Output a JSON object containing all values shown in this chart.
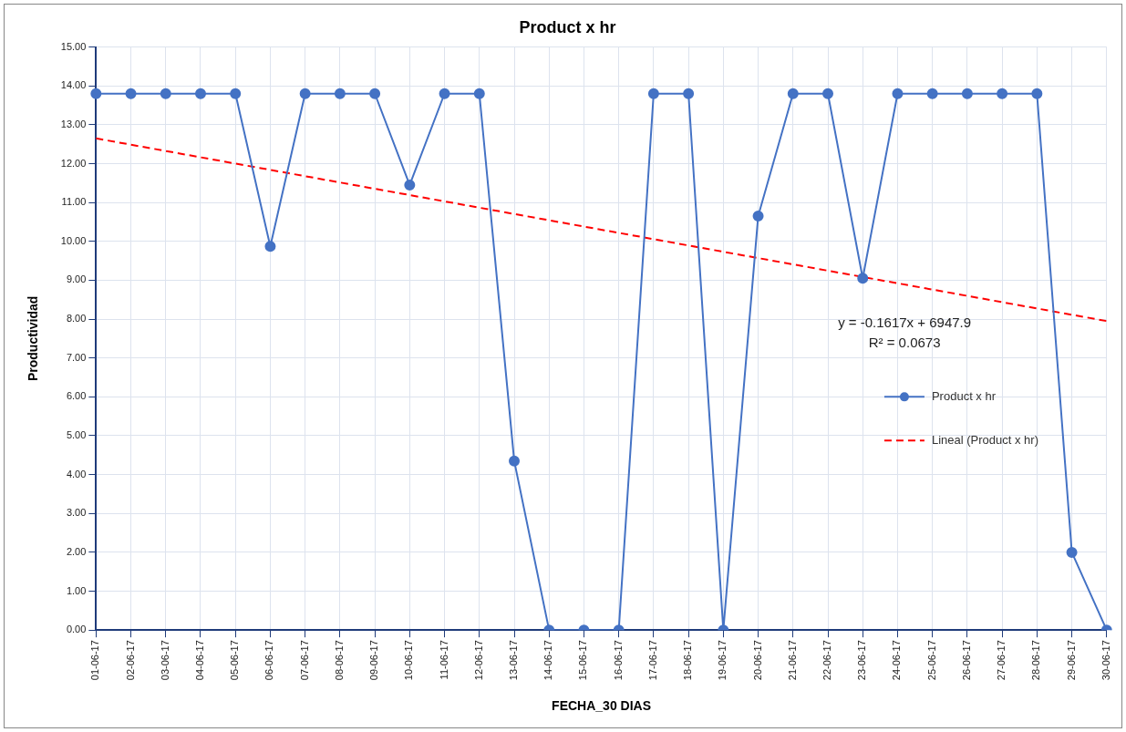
{
  "chart_data": {
    "type": "line",
    "title": "Product x hr",
    "xlabel": "FECHA_30 DIAS",
    "ylabel": "Productividad",
    "categories": [
      "01-06-17",
      "02-06-17",
      "03-06-17",
      "04-06-17",
      "05-06-17",
      "06-06-17",
      "07-06-17",
      "08-06-17",
      "09-06-17",
      "10-06-17",
      "11-06-17",
      "12-06-17",
      "13-06-17",
      "14-06-17",
      "15-06-17",
      "16-06-17",
      "17-06-17",
      "18-06-17",
      "19-06-17",
      "20-06-17",
      "21-06-17",
      "22-06-17",
      "23-06-17",
      "24-06-17",
      "25-06-17",
      "26-06-17",
      "27-06-17",
      "28-06-17",
      "29-06-17",
      "30-06-17"
    ],
    "series": [
      {
        "name": "Product x hr",
        "color": "#4472c4",
        "marker": "circle",
        "line_style": "solid",
        "values": [
          13.8,
          13.8,
          13.8,
          13.8,
          13.8,
          9.87,
          13.8,
          13.8,
          13.8,
          11.45,
          13.8,
          13.8,
          4.35,
          0,
          0,
          0,
          13.8,
          13.8,
          0,
          10.65,
          13.8,
          13.8,
          9.05,
          13.8,
          13.8,
          13.8,
          13.8,
          13.8,
          2.0,
          0
        ]
      },
      {
        "name": "Lineal (Product x hr)",
        "type": "line",
        "color": "#ff0000",
        "marker": "none",
        "line_style": "dashed",
        "x": [
          "01-06-17",
          "30-06-17"
        ],
        "values": [
          12.65,
          7.95
        ]
      }
    ],
    "ylim": [
      0,
      15
    ],
    "yticks": [
      {
        "value": 0,
        "label": "0.00"
      },
      {
        "value": 1,
        "label": "1.00"
      },
      {
        "value": 2,
        "label": "2.00"
      },
      {
        "value": 3,
        "label": "3.00"
      },
      {
        "value": 4,
        "label": "4.00"
      },
      {
        "value": 5,
        "label": "5.00"
      },
      {
        "value": 6,
        "label": "6.00"
      },
      {
        "value": 7,
        "label": "7.00"
      },
      {
        "value": 8,
        "label": "8.00"
      },
      {
        "value": 9,
        "label": "9.00"
      },
      {
        "value": 10,
        "label": "10.00"
      },
      {
        "value": 11,
        "label": "11.00"
      },
      {
        "value": 12,
        "label": "12.00"
      },
      {
        "value": 13,
        "label": "13.00"
      },
      {
        "value": 14,
        "label": "14.00"
      },
      {
        "value": 15,
        "label": "15.00"
      }
    ],
    "grid": true,
    "legend": "right",
    "annotations": [
      "y = -0.1617x + 6947.9",
      "R² = 0.0673"
    ]
  }
}
